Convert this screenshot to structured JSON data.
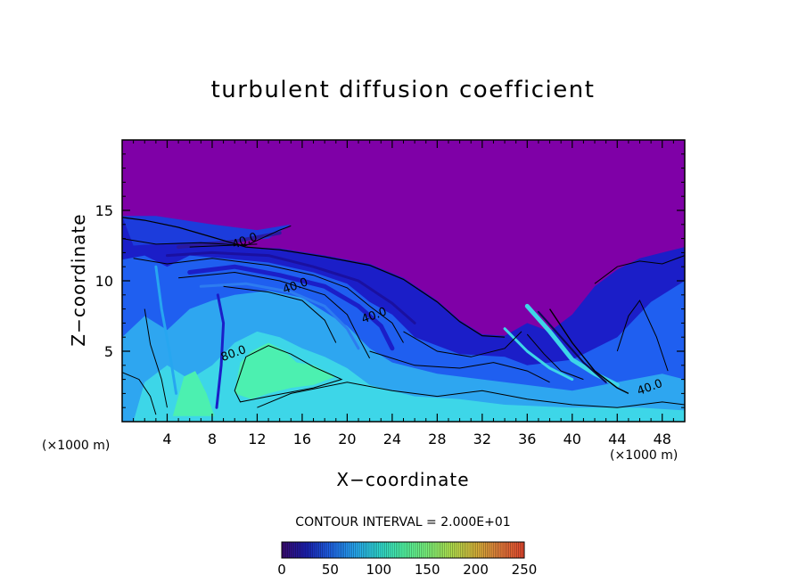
{
  "chart_data": {
    "type": "heatmap",
    "title": "turbulent diffusion coefficient",
    "xlabel": "X−coordinate",
    "ylabel": "Z−coordinate",
    "x_unit_left": "(×1000 m)",
    "x_unit_right": "(×1000 m)",
    "xlim": [
      0,
      50
    ],
    "ylim": [
      0,
      20
    ],
    "xticks": [
      4,
      8,
      12,
      16,
      20,
      24,
      28,
      32,
      36,
      40,
      44,
      48
    ],
    "yticks": [
      5,
      10,
      15
    ],
    "contour_interval_text": "CONTOUR INTERVAL = 2.000E+01",
    "contour_labels": [
      {
        "text": "40.0",
        "x": 11.0,
        "y": 12.6
      },
      {
        "text": "40.0",
        "x": 15.5,
        "y": 9.4
      },
      {
        "text": "40.0",
        "x": 22.5,
        "y": 7.3
      },
      {
        "text": "80.0",
        "x": 10.0,
        "y": 4.6
      },
      {
        "text": "40.0",
        "x": 47.0,
        "y": 2.2
      }
    ],
    "colorbar": {
      "min": 0,
      "max": 250,
      "ticks": [
        "0",
        "50",
        "100",
        "150",
        "200",
        "250"
      ],
      "colors": [
        "#3a0a6e",
        "#1a1fb0",
        "#1e62e6",
        "#27a6f0",
        "#2ed6d0",
        "#4ef2a2",
        "#7bf27a",
        "#b3e24e",
        "#d7b43a",
        "#e27a3a",
        "#e4482f"
      ]
    },
    "background_color": "#7f00a7",
    "field_colors": {
      "dark": "#1b1ec8",
      "mid": "#1f5ff0",
      "light": "#2ea6f0",
      "cyan": "#3dd6e8",
      "green": "#4cf0b0"
    }
  }
}
